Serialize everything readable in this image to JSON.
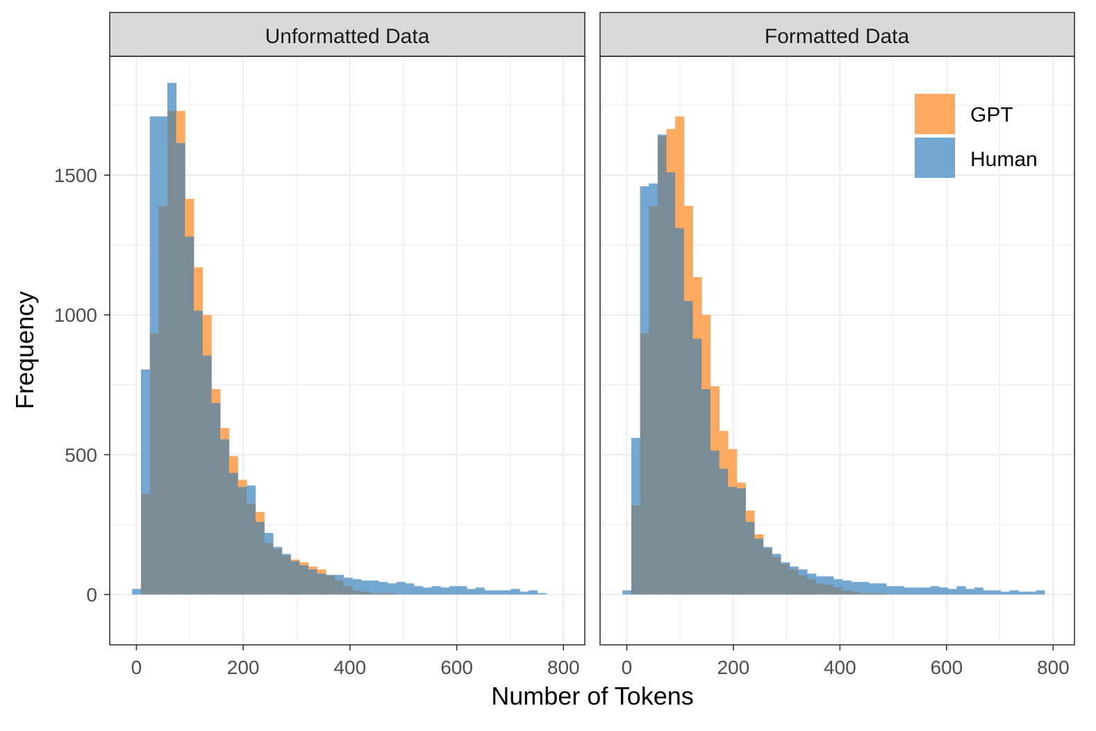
{
  "chart_data": {
    "type": "histogram",
    "xlabel": "Number of Tokens",
    "ylabel": "Frequency",
    "xlim": [
      -50,
      840
    ],
    "ylim": [
      -180,
      1925
    ],
    "x_ticks": [
      0,
      200,
      400,
      600,
      800
    ],
    "y_ticks": [
      0,
      500,
      1000,
      1500
    ],
    "bin_width": 16.5,
    "bin_start": -8,
    "legend": {
      "position": "top-right (inside right panel)",
      "entries": [
        {
          "name": "GPT",
          "color": "#fdaa60"
        },
        {
          "name": "Human",
          "color": "#72a7d1"
        }
      ]
    },
    "series_colors": {
      "GPT": "#fdaa60",
      "Human": "#72a7d1",
      "overlap": "#7a8d96"
    },
    "panels": [
      {
        "title": "Unformatted Data",
        "gpt": [
          0,
          360,
          935,
          1390,
          1730,
          1730,
          1415,
          1170,
          1000,
          735,
          595,
          495,
          410,
          325,
          295,
          185,
          165,
          140,
          125,
          115,
          100,
          90,
          70,
          50,
          30,
          15,
          10,
          5,
          5,
          5,
          0,
          0,
          0,
          0,
          0,
          0,
          0,
          0,
          0,
          0,
          0,
          0,
          0,
          0,
          0,
          0,
          0
        ],
        "human": [
          20,
          805,
          1710,
          1710,
          1830,
          1615,
          1280,
          1015,
          855,
          685,
          555,
          435,
          385,
          390,
          260,
          220,
          170,
          145,
          120,
          105,
          90,
          75,
          70,
          70,
          60,
          55,
          50,
          50,
          45,
          40,
          45,
          40,
          30,
          25,
          30,
          25,
          30,
          30,
          20,
          25,
          15,
          15,
          15,
          20,
          10,
          15,
          5
        ]
      },
      {
        "title": "Formatted Data",
        "gpt": [
          0,
          320,
          935,
          1390,
          1640,
          1665,
          1710,
          1390,
          1135,
          1000,
          745,
          585,
          520,
          400,
          300,
          215,
          165,
          135,
          110,
          90,
          70,
          55,
          40,
          35,
          25,
          15,
          10,
          5,
          5,
          5,
          0,
          0,
          0,
          0,
          0,
          0,
          0,
          0,
          0,
          0,
          0,
          0,
          0,
          0,
          0,
          0,
          0,
          0
        ],
        "human": [
          15,
          560,
          1460,
          1470,
          1645,
          1510,
          1310,
          1050,
          915,
          735,
          515,
          450,
          385,
          380,
          260,
          200,
          170,
          145,
          115,
          100,
          90,
          75,
          65,
          65,
          55,
          50,
          45,
          45,
          40,
          40,
          30,
          30,
          25,
          25,
          25,
          30,
          25,
          20,
          30,
          20,
          25,
          15,
          15,
          10,
          15,
          10,
          10,
          15
        ]
      }
    ]
  }
}
